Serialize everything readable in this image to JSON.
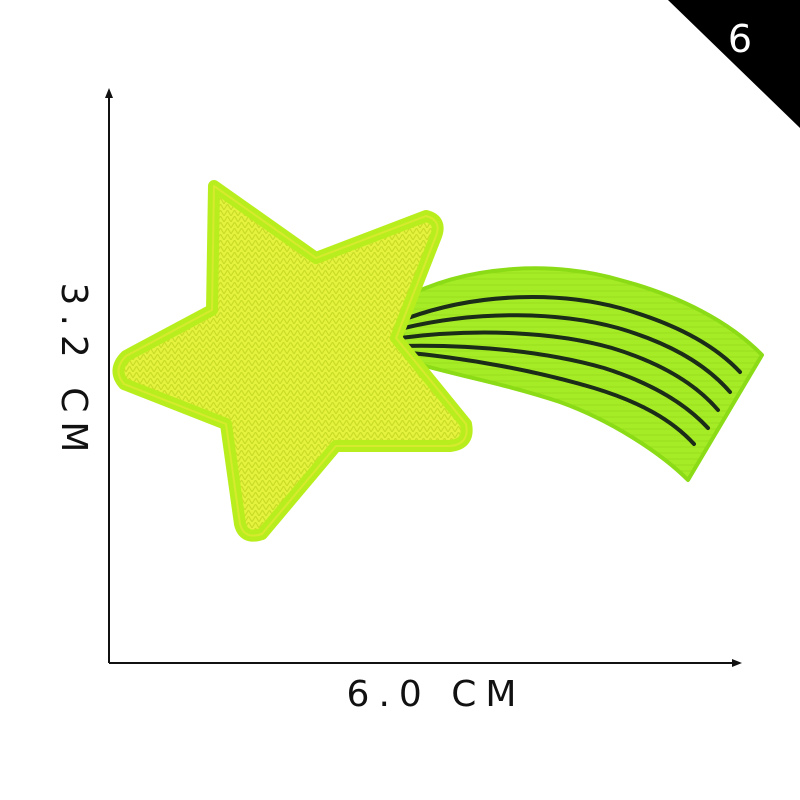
{
  "corner_badge": {
    "number": "6",
    "color": "#000000"
  },
  "dimensions": {
    "width_label": "6.0 CM",
    "height_label": "3.2 CM",
    "line_color": "#111111"
  },
  "product": {
    "shape": "shooting-star-patch",
    "colors": {
      "star_fill": "#e3f23a",
      "star_border": "#b9ee1e",
      "tail_fill": "#a6ec26",
      "tail_stripes": "#1b2c18"
    }
  }
}
